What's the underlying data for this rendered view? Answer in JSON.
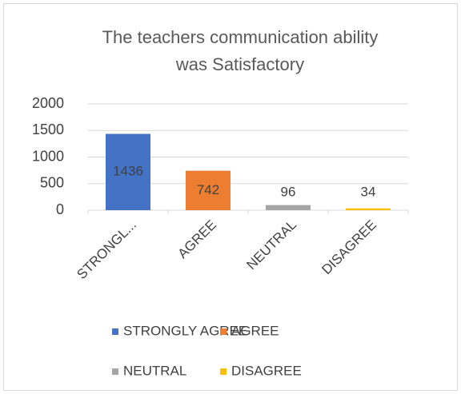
{
  "chart_data": {
    "type": "bar",
    "title_lines": [
      "The teachers communication ability",
      "was Satisfactory"
    ],
    "categories": [
      "STRONGL...",
      "AGREE",
      "NEUTRAL",
      "DISAGREE"
    ],
    "values": [
      1436,
      742,
      96,
      34
    ],
    "colors": [
      "#4472c4",
      "#ed7d31",
      "#a5a5a5",
      "#ffc000"
    ],
    "legend": [
      "STRONGLY AGREE",
      "AGREE",
      "NEUTRAL",
      "DISAGREE"
    ],
    "ylim": [
      0,
      2000
    ],
    "yticks": [
      0,
      500,
      1000,
      1500,
      2000
    ],
    "grid": true
  }
}
